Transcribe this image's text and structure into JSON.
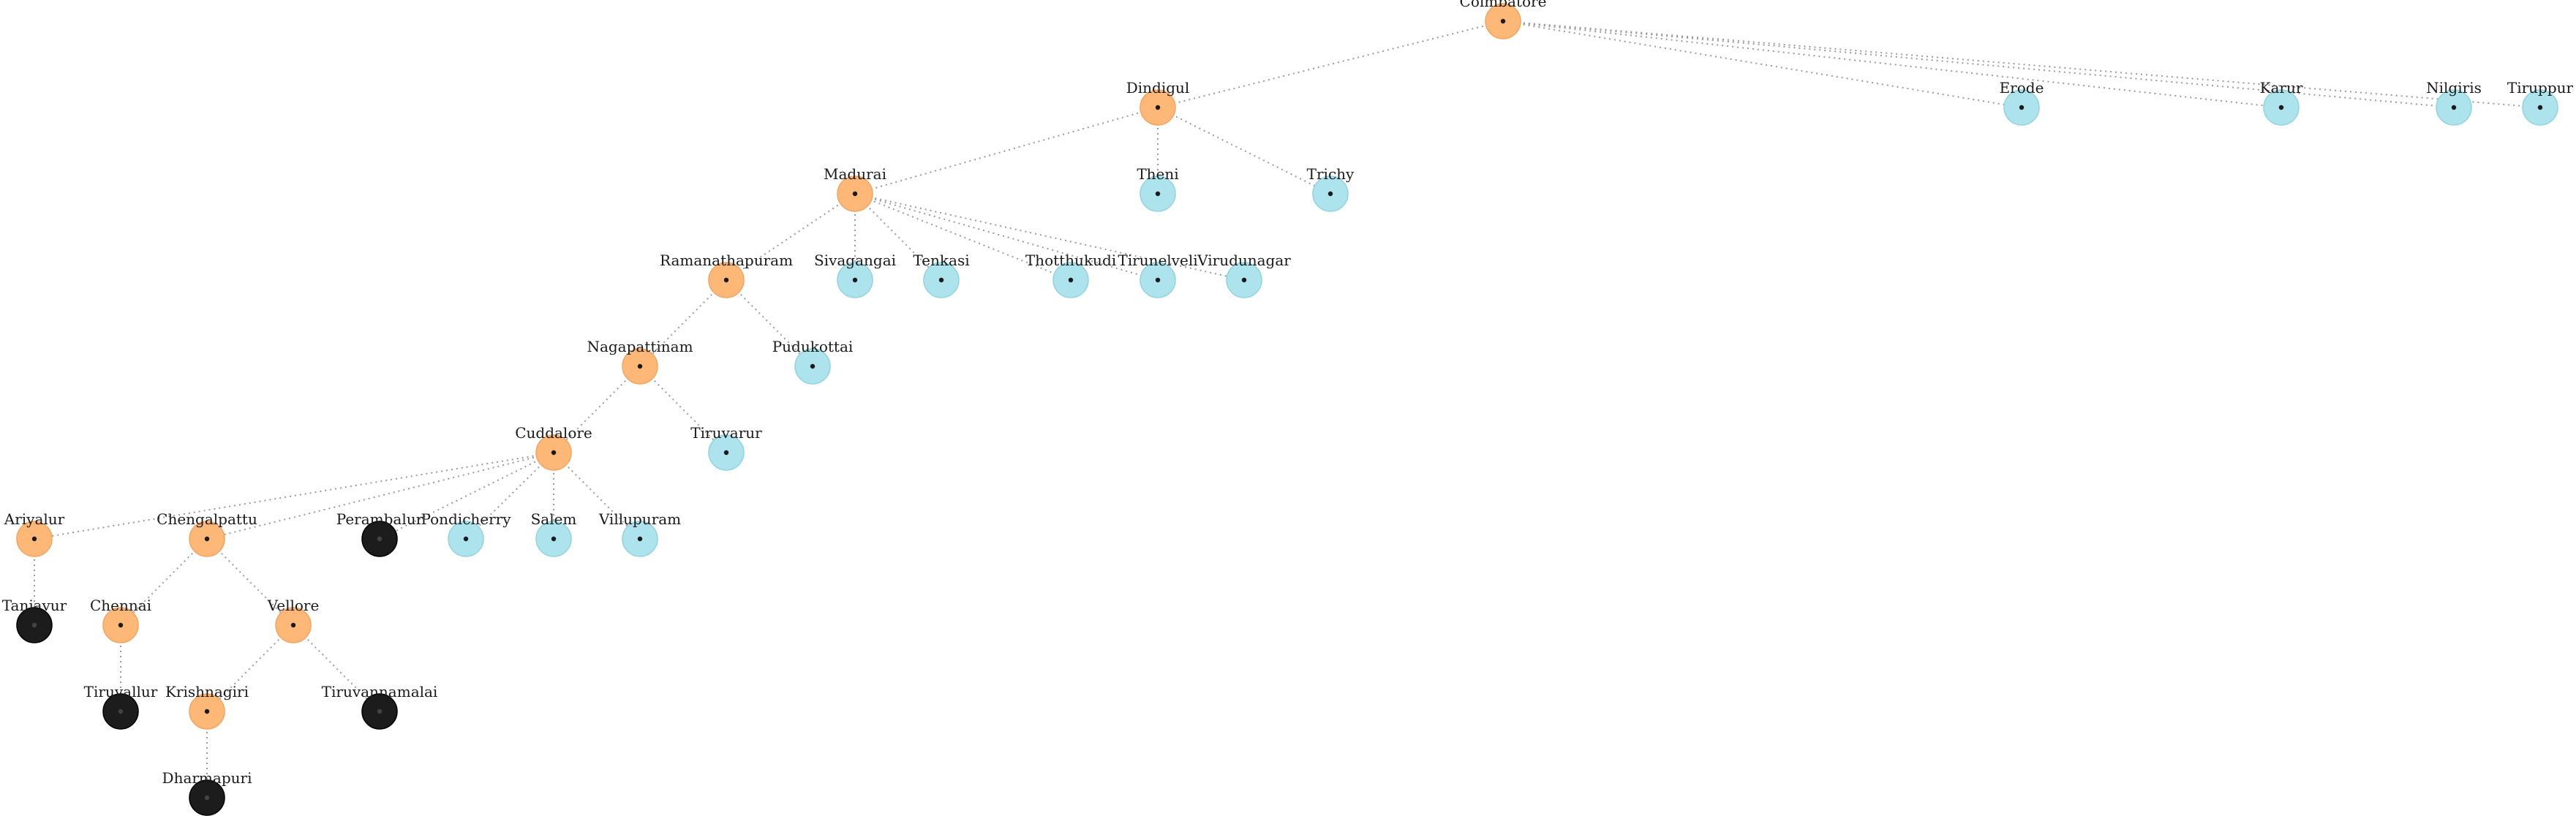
{
  "colors": {
    "internal": "#fdb777",
    "leaf": "#ade3ec",
    "dead": "#1c1c1c",
    "edge": "#9a9a9a"
  },
  "legend": {
    "internal": "orange",
    "leaf": "light-blue",
    "dead": "black"
  },
  "tree": {
    "nodes": [
      {
        "id": "coimbatore",
        "label": "Coimbatore",
        "kind": "internal",
        "level": 0
      },
      {
        "id": "dindigul",
        "label": "Dindigul",
        "kind": "internal",
        "level": 1
      },
      {
        "id": "erode",
        "label": "Erode",
        "kind": "leaf",
        "level": 1
      },
      {
        "id": "karur",
        "label": "Karur",
        "kind": "leaf",
        "level": 1
      },
      {
        "id": "nilgiris",
        "label": "Nilgiris",
        "kind": "leaf",
        "level": 1
      },
      {
        "id": "tiruppur",
        "label": "Tiruppur",
        "kind": "leaf",
        "level": 1
      },
      {
        "id": "madurai",
        "label": "Madurai",
        "kind": "internal",
        "level": 2
      },
      {
        "id": "theni",
        "label": "Theni",
        "kind": "leaf",
        "level": 2
      },
      {
        "id": "trichy",
        "label": "Trichy",
        "kind": "leaf",
        "level": 2
      },
      {
        "id": "ramanathapuram",
        "label": "Ramanathapuram",
        "kind": "internal",
        "level": 3
      },
      {
        "id": "sivagangai",
        "label": "Sivagangai",
        "kind": "leaf",
        "level": 3
      },
      {
        "id": "tenkasi",
        "label": "Tenkasi",
        "kind": "leaf",
        "level": 3
      },
      {
        "id": "thoothukudi",
        "label": "Thotthukudi",
        "kind": "leaf",
        "level": 3
      },
      {
        "id": "tirunelveli",
        "label": "Tirunelveli",
        "kind": "leaf",
        "level": 3
      },
      {
        "id": "virudunagar",
        "label": "Virudunagar",
        "kind": "leaf",
        "level": 3
      },
      {
        "id": "nagapattinam",
        "label": "Nagapattinam",
        "kind": "internal",
        "level": 4
      },
      {
        "id": "pudukottai",
        "label": "Pudukottai",
        "kind": "leaf",
        "level": 4
      },
      {
        "id": "cuddalore",
        "label": "Cuddalore",
        "kind": "internal",
        "level": 5
      },
      {
        "id": "tiruvarur",
        "label": "Tiruvarur",
        "kind": "leaf",
        "level": 5
      },
      {
        "id": "ariyalur",
        "label": "Ariyalur",
        "kind": "internal",
        "level": 6
      },
      {
        "id": "chengalpattu",
        "label": "Chengalpattu",
        "kind": "internal",
        "level": 6
      },
      {
        "id": "perambalur",
        "label": "Perambalur",
        "kind": "dead",
        "level": 6
      },
      {
        "id": "pondicherry",
        "label": "Pondicherry",
        "kind": "leaf",
        "level": 6
      },
      {
        "id": "salem",
        "label": "Salem",
        "kind": "leaf",
        "level": 6
      },
      {
        "id": "villupuram",
        "label": "Villupuram",
        "kind": "leaf",
        "level": 6
      },
      {
        "id": "tanjavur",
        "label": "Tanjavur",
        "kind": "dead",
        "level": 7
      },
      {
        "id": "chennai",
        "label": "Chennai",
        "kind": "internal",
        "level": 7
      },
      {
        "id": "vellore",
        "label": "Vellore",
        "kind": "internal",
        "level": 7
      },
      {
        "id": "tiruvallur",
        "label": "Tiruvallur",
        "kind": "dead",
        "level": 8
      },
      {
        "id": "krishnagiri",
        "label": "Krishnagiri",
        "kind": "internal",
        "level": 8
      },
      {
        "id": "tiruvannamalai",
        "label": "Tiruvannamalai",
        "kind": "dead",
        "level": 8
      },
      {
        "id": "dharmapuri",
        "label": "Dharmapuri",
        "kind": "dead",
        "level": 9
      }
    ],
    "edges": [
      [
        "coimbatore",
        "dindigul"
      ],
      [
        "coimbatore",
        "erode"
      ],
      [
        "coimbatore",
        "karur"
      ],
      [
        "coimbatore",
        "nilgiris"
      ],
      [
        "coimbatore",
        "tiruppur"
      ],
      [
        "dindigul",
        "madurai"
      ],
      [
        "dindigul",
        "theni"
      ],
      [
        "dindigul",
        "trichy"
      ],
      [
        "madurai",
        "ramanathapuram"
      ],
      [
        "madurai",
        "sivagangai"
      ],
      [
        "madurai",
        "tenkasi"
      ],
      [
        "madurai",
        "thoothukudi"
      ],
      [
        "madurai",
        "tirunelveli"
      ],
      [
        "madurai",
        "virudunagar"
      ],
      [
        "ramanathapuram",
        "nagapattinam"
      ],
      [
        "ramanathapuram",
        "pudukottai"
      ],
      [
        "nagapattinam",
        "cuddalore"
      ],
      [
        "nagapattinam",
        "tiruvarur"
      ],
      [
        "cuddalore",
        "ariyalur"
      ],
      [
        "cuddalore",
        "chengalpattu"
      ],
      [
        "cuddalore",
        "perambalur"
      ],
      [
        "cuddalore",
        "pondicherry"
      ],
      [
        "cuddalore",
        "salem"
      ],
      [
        "cuddalore",
        "villupuram"
      ],
      [
        "ariyalur",
        "tanjavur"
      ],
      [
        "chengalpattu",
        "chennai"
      ],
      [
        "chengalpattu",
        "vellore"
      ],
      [
        "chennai",
        "tiruvallur"
      ],
      [
        "vellore",
        "krishnagiri"
      ],
      [
        "vellore",
        "tiruvannamalai"
      ],
      [
        "krishnagiri",
        "dharmapuri"
      ]
    ]
  }
}
